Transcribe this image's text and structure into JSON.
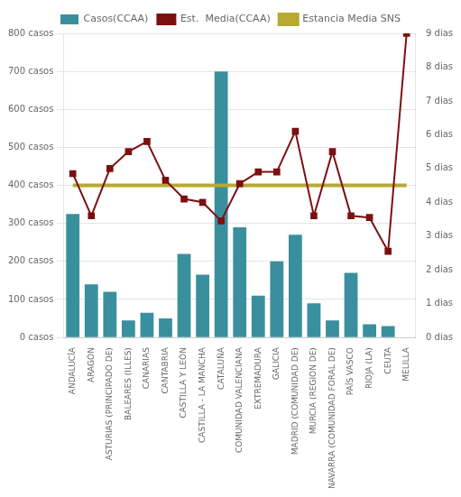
{
  "chart_data": {
    "type": "bar",
    "categories": [
      "ANDALUCÍA",
      "ARAGÓN",
      "ASTURIAS (PRINCIPADO DE)",
      "BALEARES (ILLES)",
      "CANARIAS",
      "CANTABRIA",
      "CASTILLA Y LEÓN",
      "CASTILLA - LA MANCHA",
      "CATALUÑA",
      "COMUNIDAD VALENCIANA",
      "EXTREMADURA",
      "GALICIA",
      "MADRID (COMUNIDAD DE)",
      "MURCIA (REGION DE)",
      "NAVARRA (COMUNIDAD FORAL DE)",
      "PAÍS VASCO",
      "RIOJA (LA)",
      "CEUTA",
      "MELILLA"
    ],
    "series": [
      {
        "name": "Casos(CCAA)",
        "type": "bar",
        "color": "#3a8f9e",
        "values": [
          325,
          140,
          120,
          45,
          65,
          50,
          220,
          165,
          700,
          290,
          110,
          200,
          270,
          90,
          45,
          170,
          35,
          30,
          0
        ]
      },
      {
        "name": "Est.  Media(CCAA)",
        "type": "line",
        "color": "#7b1010",
        "marker": "square",
        "axis": "y2",
        "values": [
          4.85,
          3.6,
          5.0,
          5.5,
          5.8,
          4.65,
          4.1,
          4.0,
          3.45,
          4.55,
          4.9,
          4.9,
          6.1,
          3.6,
          5.5,
          3.6,
          3.55,
          2.55,
          9.0
        ]
      },
      {
        "name": "Estancia Media SNS",
        "type": "line",
        "color": "#b8a830",
        "marker": "none",
        "axis": "y2",
        "values": [
          4.5,
          4.5,
          4.5,
          4.5,
          4.5,
          4.5,
          4.5,
          4.5,
          4.5,
          4.5,
          4.5,
          4.5,
          4.5,
          4.5,
          4.5,
          4.5,
          4.5,
          4.5,
          4.5
        ]
      }
    ],
    "ylim": [
      0,
      800
    ],
    "yticks": [
      {
        "value": 0,
        "label": "0 casos"
      },
      {
        "value": 100,
        "label": "100 casos"
      },
      {
        "value": 200,
        "label": "200 casos"
      },
      {
        "value": 300,
        "label": "300 casos"
      },
      {
        "value": 400,
        "label": "400 casos"
      },
      {
        "value": 500,
        "label": "500 casos"
      },
      {
        "value": 600,
        "label": "600 casos"
      },
      {
        "value": 700,
        "label": "700 casos"
      },
      {
        "value": 800,
        "label": "800 casos"
      }
    ],
    "y2lim": [
      0,
      9
    ],
    "y2ticks": [
      {
        "value": 0,
        "label": "0 dias"
      },
      {
        "value": 1,
        "label": "1 dias"
      },
      {
        "value": 2,
        "label": "2 dias"
      },
      {
        "value": 3,
        "label": "3 dias"
      },
      {
        "value": 4,
        "label": "4 dias"
      },
      {
        "value": 5,
        "label": "5 dias"
      },
      {
        "value": 6,
        "label": "6 dias"
      },
      {
        "value": 7,
        "label": "7 dias"
      },
      {
        "value": 8,
        "label": "8 dias"
      },
      {
        "value": 9,
        "label": "9 dias"
      }
    ],
    "grid": true,
    "legend": "top"
  }
}
